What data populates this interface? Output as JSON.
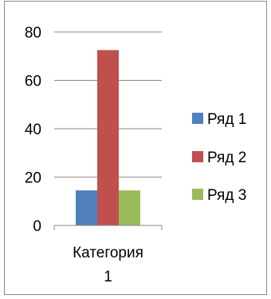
{
  "chart_data": {
    "type": "bar",
    "categories": [
      "Категория 1"
    ],
    "category_label_lines": [
      [
        "Категория",
        "1"
      ]
    ],
    "series": [
      {
        "name": "Ряд 1",
        "values": [
          14.5
        ],
        "color": "#4F81BD"
      },
      {
        "name": "Ряд 2",
        "values": [
          72.5
        ],
        "color": "#C0504D"
      },
      {
        "name": "Ряд 3",
        "values": [
          14.5
        ],
        "color": "#9BBB59"
      }
    ],
    "ylim": [
      0,
      80
    ],
    "yticks": [
      0,
      20,
      40,
      60,
      80
    ],
    "grid": true,
    "legend": "right"
  }
}
